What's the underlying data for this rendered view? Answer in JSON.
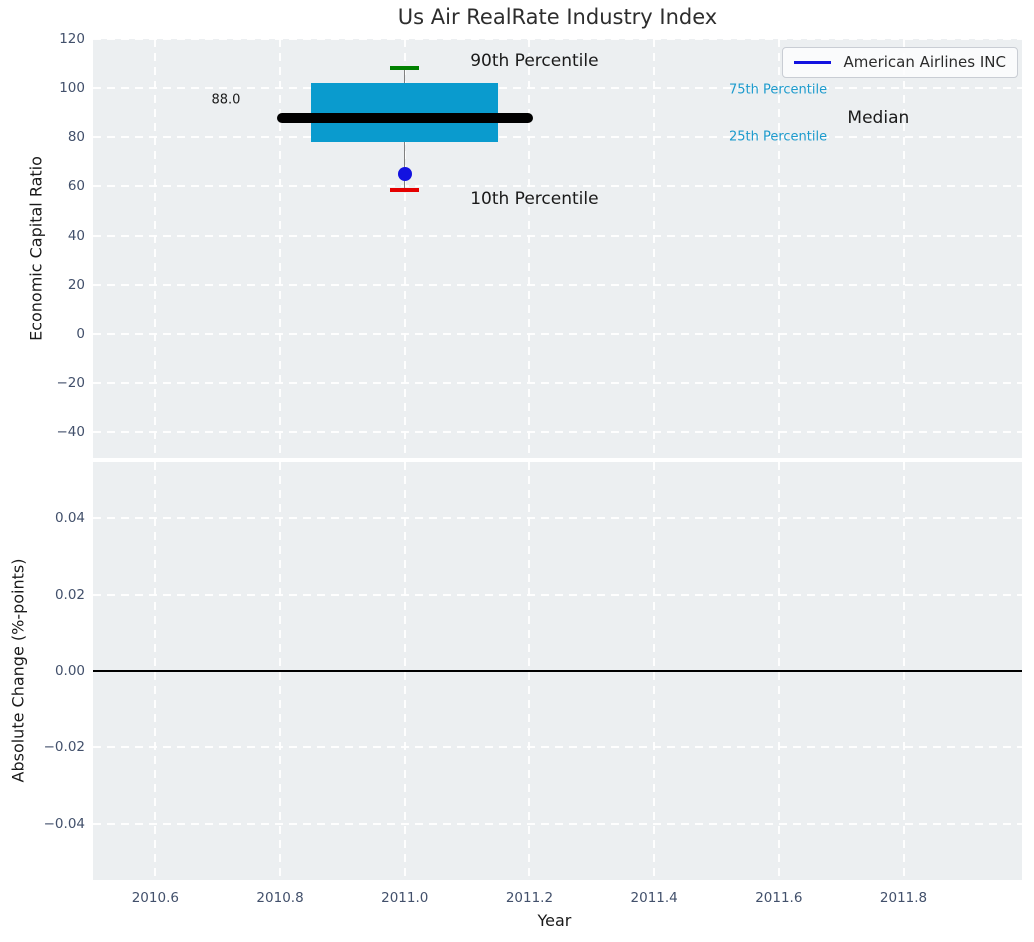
{
  "figure": {
    "title": "Us Air RealRate Industry Index",
    "background": "#ffffff",
    "axes_background": "#eceff1",
    "grid_color": "#ffffff",
    "tick_label_color": "#42506b"
  },
  "chart_data": [
    {
      "type": "box",
      "panel": "top",
      "title": "Us Air RealRate Industry Index",
      "ylabel": "Economic Capital Ratio",
      "ylim": [
        -50.5,
        120
      ],
      "yticks": {
        "values": [
          120,
          100,
          80,
          60,
          40,
          20,
          0,
          -20,
          -40
        ],
        "labels": [
          "120",
          "100",
          "80",
          "60",
          "40",
          "20",
          "0",
          "−20",
          "−40"
        ]
      },
      "xlim": [
        2010.5,
        2011.99
      ],
      "xticks": {
        "values": [
          2010.6,
          2010.8,
          2011.0,
          2011.2,
          2011.4,
          2011.6,
          2011.8
        ],
        "labels": []
      },
      "grid": true,
      "legend": {
        "position": "upper right",
        "entries": [
          {
            "label": "American Airlines INC",
            "color": "#1212e0",
            "marker": "line"
          }
        ]
      },
      "box": {
        "center_x": 2011.0,
        "p90": 108,
        "q3": 102,
        "median": 88.0,
        "q1": 78,
        "p10": 58.5,
        "box_left": 2010.85,
        "box_right": 2011.15,
        "median_left": 2010.795,
        "median_right": 2011.205,
        "cap_half_width": 0.023,
        "fill_color": "#0a9bce",
        "whisker_color": "#808080",
        "p90_cap_color": "#008000",
        "p10_cap_color": "#e50000",
        "median_color": "#000000",
        "median_value_label": "88.0"
      },
      "point": {
        "x": 2011.0,
        "y": 65,
        "color": "#1212e0",
        "name": "American Airlines INC"
      },
      "annotations": [
        {
          "text": "90th Percentile",
          "x": 2011.105,
          "y": 111.0,
          "color": "#1a1a1a",
          "size": 17
        },
        {
          "text": "10th Percentile",
          "x": 2011.105,
          "y": 54.9,
          "color": "#1a1a1a",
          "size": 17
        },
        {
          "text": "Median",
          "x": 2011.71,
          "y": 87.9,
          "color": "#1a1a1a",
          "size": 17
        },
        {
          "text": "75th Percentile",
          "x": 2011.52,
          "y": 99.3,
          "color": "#1d9bcd",
          "size": 13
        },
        {
          "text": "25th Percentile",
          "x": 2011.52,
          "y": 80.1,
          "color": "#1d9bcd",
          "size": 13
        },
        {
          "text": "88.0",
          "x": 2010.69,
          "y": 95.2,
          "color": "#1a1a1a",
          "size": 13
        }
      ]
    },
    {
      "type": "line",
      "panel": "bottom",
      "xlabel": "Year",
      "ylabel": "Absolute Change (%-points)",
      "ylim": [
        -0.0547,
        0.0547
      ],
      "yticks": {
        "values": [
          0.04,
          0.02,
          0.0,
          -0.02,
          -0.04
        ],
        "labels": [
          "0.04",
          "0.02",
          "0.00",
          "−0.02",
          "−0.04"
        ]
      },
      "xlim": [
        2010.5,
        2011.99
      ],
      "xticks": {
        "values": [
          2010.6,
          2010.8,
          2011.0,
          2011.2,
          2011.4,
          2011.6,
          2011.8
        ],
        "labels": [
          "2010.6",
          "2010.8",
          "2011.0",
          "2011.2",
          "2011.4",
          "2011.6",
          "2011.8"
        ]
      },
      "grid": true,
      "zero_line": {
        "y": 0.0,
        "color": "#000000"
      }
    }
  ]
}
